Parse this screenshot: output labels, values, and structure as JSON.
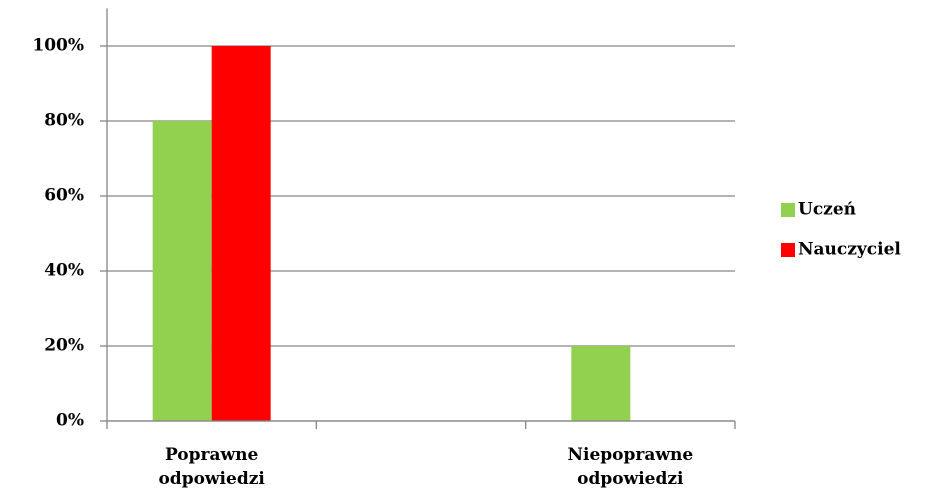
{
  "chart_data": {
    "type": "bar",
    "categories": [
      "Poprawne odpowiedzi",
      null,
      "Niepoprawne odpowiedzi"
    ],
    "series": [
      {
        "name": "Uczeń",
        "color": "#92d050",
        "values": [
          80,
          null,
          20
        ]
      },
      {
        "name": "Nauczyciel",
        "color": "#ff0000",
        "values": [
          100,
          null,
          0
        ]
      }
    ],
    "ylim": [
      0,
      110
    ],
    "yticks": [
      {
        "value": 0,
        "label": "0%"
      },
      {
        "value": 20,
        "label": "20%"
      },
      {
        "value": 40,
        "label": "40%"
      },
      {
        "value": 60,
        "label": "60%"
      },
      {
        "value": 80,
        "label": "80%"
      },
      {
        "value": 100,
        "label": "100%"
      }
    ],
    "grid": true,
    "legend": "right"
  }
}
